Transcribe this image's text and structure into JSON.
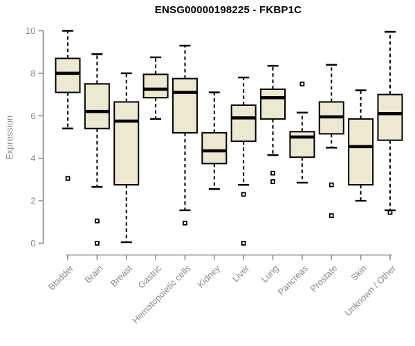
{
  "title": "ENSG00000198225 - FKBP1C",
  "chart_data": {
    "type": "boxplot",
    "title": "ENSG00000198225 - FKBP1C",
    "xlabel": "",
    "ylabel": "Expression",
    "ylim": [
      0,
      10
    ],
    "yticks": [
      0,
      2,
      4,
      6,
      8,
      10
    ],
    "grid": false,
    "legend": "none",
    "colors": {
      "box_fill": "#EDE8D0",
      "box_stroke": "#000000",
      "median": "#000000",
      "whisker": "#000000",
      "axis": "#8a8a8a",
      "tick_label": "#8a8a8a",
      "title_text": "#000000",
      "background": "#ffffff"
    },
    "categories": [
      "Bladder",
      "Brain",
      "Breast",
      "Gastric",
      "Hematopoietic cells",
      "Kidney",
      "Liver",
      "Lung",
      "Pancreas",
      "Prostate",
      "Skin",
      "Unknown / Other"
    ],
    "series": [
      {
        "label": "Bladder",
        "whisker_low": 5.4,
        "q1": 7.1,
        "median": 8.0,
        "q3": 8.7,
        "whisker_high": 10.0,
        "outliers": [
          3.05
        ]
      },
      {
        "label": "Brain",
        "whisker_low": 2.65,
        "q1": 5.4,
        "median": 6.2,
        "q3": 7.5,
        "whisker_high": 8.9,
        "outliers": [
          1.05,
          0.0
        ]
      },
      {
        "label": "Breast",
        "whisker_low": 0.05,
        "q1": 2.75,
        "median": 5.75,
        "q3": 6.65,
        "whisker_high": 8.0,
        "outliers": []
      },
      {
        "label": "Gastric",
        "whisker_low": 5.85,
        "q1": 6.85,
        "median": 7.25,
        "q3": 7.95,
        "whisker_high": 8.75,
        "outliers": []
      },
      {
        "label": "Hematopoietic cells",
        "whisker_low": 1.55,
        "q1": 5.2,
        "median": 7.1,
        "q3": 7.75,
        "whisker_high": 9.3,
        "outliers": [
          0.95
        ]
      },
      {
        "label": "Kidney",
        "whisker_low": 2.55,
        "q1": 3.75,
        "median": 4.35,
        "q3": 5.2,
        "whisker_high": 7.1,
        "outliers": []
      },
      {
        "label": "Liver",
        "whisker_low": 2.75,
        "q1": 4.8,
        "median": 5.9,
        "q3": 6.5,
        "whisker_high": 7.8,
        "outliers": [
          2.3,
          0.0
        ]
      },
      {
        "label": "Lung",
        "whisker_low": 4.15,
        "q1": 5.85,
        "median": 6.85,
        "q3": 7.25,
        "whisker_high": 8.35,
        "outliers": [
          3.3,
          2.9
        ]
      },
      {
        "label": "Pancreas",
        "whisker_low": 2.85,
        "q1": 4.05,
        "median": 5.0,
        "q3": 5.25,
        "whisker_high": 6.15,
        "outliers": [
          7.5
        ]
      },
      {
        "label": "Prostate",
        "whisker_low": 4.5,
        "q1": 5.15,
        "median": 5.95,
        "q3": 6.65,
        "whisker_high": 8.4,
        "outliers": [
          2.75,
          1.3
        ]
      },
      {
        "label": "Skin",
        "whisker_low": 2.0,
        "q1": 2.75,
        "median": 4.55,
        "q3": 5.85,
        "whisker_high": 7.2,
        "outliers": []
      },
      {
        "label": "Unknown / Other",
        "whisker_low": 1.55,
        "q1": 4.85,
        "median": 6.1,
        "q3": 7.0,
        "whisker_high": 9.95,
        "outliers": [
          1.45
        ]
      }
    ]
  }
}
